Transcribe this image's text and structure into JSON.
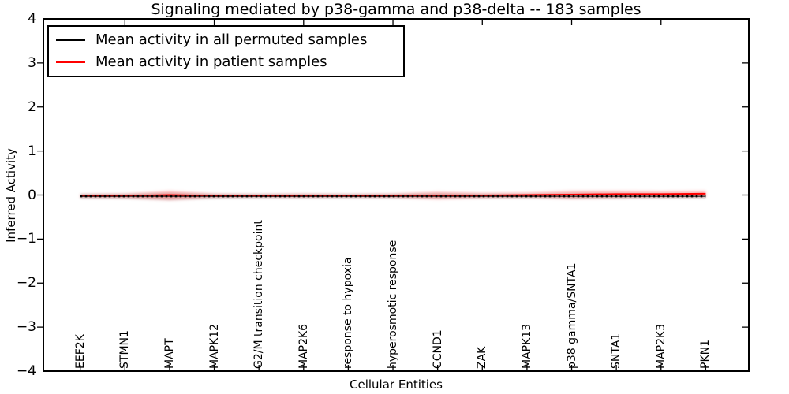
{
  "chart_data": {
    "type": "line",
    "title": "Signaling mediated by p38-gamma and p38-delta -- 183 samples",
    "xlabel": "Cellular Entities",
    "ylabel": "Inferred Activity",
    "ylim": [
      -4,
      4
    ],
    "yticks": [
      {
        "value": 4,
        "label": "4"
      },
      {
        "value": 3,
        "label": "3"
      },
      {
        "value": 2,
        "label": "2"
      },
      {
        "value": 1,
        "label": "1"
      },
      {
        "value": 0,
        "label": "0"
      },
      {
        "value": -1,
        "label": "−1"
      },
      {
        "value": -2,
        "label": "−2"
      },
      {
        "value": -3,
        "label": "−3"
      },
      {
        "value": -4,
        "label": "−4"
      }
    ],
    "categories": [
      "EEF2K",
      "STMN1",
      "MAPT",
      "MAPK12",
      "G2/M transition checkpoint",
      "MAP2K6",
      "response to hypoxia",
      "hyperosmotic response",
      "CCND1",
      "ZAK",
      "MAPK13",
      "p38 gamma/SNTA1",
      "SNTA1",
      "MAP2K3",
      "PKN1"
    ],
    "series": [
      {
        "name": "Mean activity in all permuted samples",
        "color": "#000000",
        "line_style": "solid with square markers",
        "values": [
          -0.03,
          -0.03,
          -0.03,
          -0.03,
          -0.03,
          -0.03,
          -0.03,
          -0.03,
          -0.03,
          -0.03,
          -0.03,
          -0.03,
          -0.03,
          -0.03,
          -0.03
        ]
      },
      {
        "name": "Mean activity in patient samples",
        "color": "#ff0000",
        "line_style": "solid",
        "values": [
          -0.02,
          -0.02,
          0.0,
          -0.02,
          -0.02,
          -0.02,
          -0.02,
          -0.02,
          -0.01,
          -0.01,
          0.0,
          0.01,
          0.02,
          0.02,
          0.03
        ]
      }
    ],
    "bands": [
      {
        "name": "permuted samples spread",
        "color": "#999999",
        "opacity": 0.35,
        "lo": [
          -0.09,
          -0.09,
          -0.12,
          -0.09,
          -0.08,
          -0.08,
          -0.08,
          -0.08,
          -0.09,
          -0.08,
          -0.08,
          -0.09,
          -0.09,
          -0.08,
          -0.08
        ],
        "hi": [
          0.03,
          0.03,
          0.05,
          0.03,
          0.03,
          0.03,
          0.03,
          0.03,
          0.04,
          0.03,
          0.03,
          0.04,
          0.04,
          0.03,
          0.03
        ]
      },
      {
        "name": "patient samples spread",
        "color": "#ff0000",
        "opacity": 0.28,
        "lo": [
          -0.05,
          -0.06,
          -0.11,
          -0.05,
          -0.04,
          -0.05,
          -0.04,
          -0.05,
          -0.09,
          -0.06,
          -0.05,
          -0.08,
          -0.06,
          -0.05,
          -0.04
        ],
        "hi": [
          0.01,
          0.02,
          0.09,
          0.02,
          0.01,
          0.02,
          0.01,
          0.02,
          0.07,
          0.04,
          0.05,
          0.09,
          0.09,
          0.08,
          0.09
        ]
      }
    ],
    "legend": {
      "position": "upper left",
      "frame": true
    },
    "grid": false
  }
}
